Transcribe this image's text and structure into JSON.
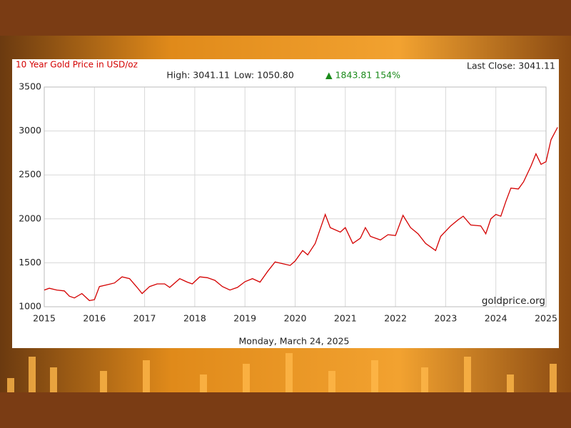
{
  "chart_data": {
    "type": "line",
    "title": "10 Year Gold Price in USD/oz",
    "last_close": "Last Close: 3041.11",
    "high": "High: 3041.11",
    "low": "Low: 1050.80",
    "change": "▲ 1843.81 154%",
    "watermark": "goldprice.org",
    "date": "Monday, March 24, 2025",
    "x": [
      2015.0,
      2015.1,
      2015.25,
      2015.4,
      2015.5,
      2015.6,
      2015.75,
      2015.9,
      2016.0,
      2016.1,
      2016.25,
      2016.4,
      2016.55,
      2016.7,
      2016.85,
      2016.95,
      2017.1,
      2017.25,
      2017.4,
      2017.5,
      2017.7,
      2017.85,
      2017.95,
      2018.1,
      2018.25,
      2018.4,
      2018.55,
      2018.7,
      2018.85,
      2019.0,
      2019.15,
      2019.3,
      2019.45,
      2019.6,
      2019.75,
      2019.9,
      2020.0,
      2020.15,
      2020.25,
      2020.4,
      2020.6,
      2020.7,
      2020.9,
      2021.0,
      2021.15,
      2021.3,
      2021.4,
      2021.5,
      2021.7,
      2021.85,
      2022.0,
      2022.15,
      2022.3,
      2022.45,
      2022.6,
      2022.8,
      2022.9,
      2023.1,
      2023.25,
      2023.35,
      2023.5,
      2023.7,
      2023.8,
      2023.9,
      2024.0,
      2024.1,
      2024.2,
      2024.3,
      2024.45,
      2024.55,
      2024.7,
      2024.8,
      2024.9,
      2025.0,
      2025.1,
      2025.23
    ],
    "series": [
      {
        "color": "#d40000",
        "values": [
          1190,
          1210,
          1190,
          1180,
          1120,
          1100,
          1150,
          1070,
          1080,
          1230,
          1250,
          1270,
          1340,
          1320,
          1220,
          1150,
          1230,
          1260,
          1260,
          1220,
          1320,
          1280,
          1260,
          1340,
          1330,
          1300,
          1230,
          1190,
          1220,
          1285,
          1320,
          1280,
          1400,
          1510,
          1490,
          1470,
          1520,
          1640,
          1590,
          1720,
          2050,
          1900,
          1850,
          1900,
          1720,
          1780,
          1900,
          1800,
          1760,
          1820,
          1810,
          2040,
          1900,
          1830,
          1720,
          1640,
          1800,
          1920,
          1990,
          2030,
          1930,
          1920,
          1830,
          2000,
          2050,
          2030,
          2200,
          2350,
          2340,
          2420,
          2600,
          2740,
          2620,
          2650,
          2900,
          3041.11
        ]
      }
    ],
    "xlim": [
      2015,
      2025
    ],
    "xticks": [
      2015,
      2016,
      2017,
      2018,
      2019,
      2020,
      2021,
      2022,
      2023,
      2024,
      2025
    ],
    "ylim": [
      1000,
      3500
    ],
    "yticks": [
      1000,
      1500,
      2000,
      2500,
      3000,
      3500
    ],
    "grid": true
  }
}
